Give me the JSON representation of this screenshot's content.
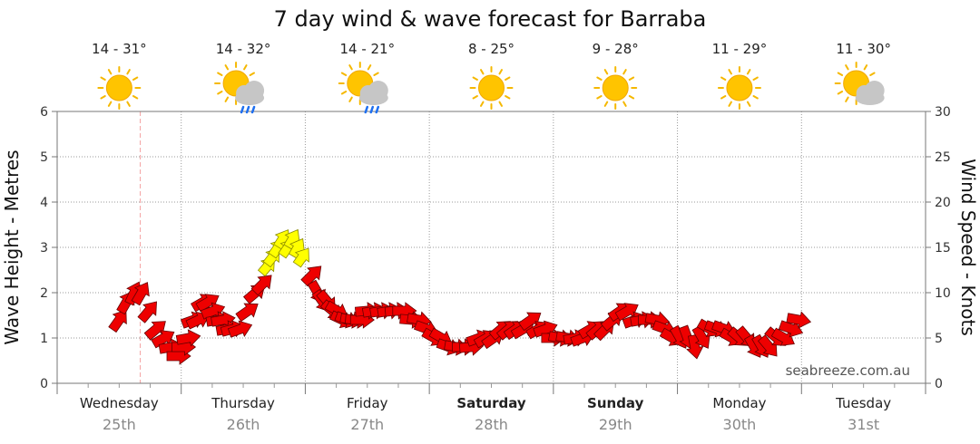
{
  "title": "7 day wind & wave forecast for Barraba",
  "credit": "seabreeze.com.au",
  "colors": {
    "arrow_normal": "#ee0000",
    "arrow_strong": "#ffff00",
    "arrow_outline": "#660000",
    "now_line": "#f4a0a0",
    "grid": "#9a9a9a"
  },
  "days": [
    {
      "name": "Wednesday",
      "date": "25th",
      "temp": "14 - 31°",
      "icon": "sun-icon",
      "bold": false
    },
    {
      "name": "Thursday",
      "date": "26th",
      "temp": "14 - 32°",
      "icon": "sun-cloud-rain-icon",
      "bold": false
    },
    {
      "name": "Friday",
      "date": "27th",
      "temp": "14 - 21°",
      "icon": "sun-cloud-rain-icon",
      "bold": false
    },
    {
      "name": "Saturday",
      "date": "28th",
      "temp": "8 - 25°",
      "icon": "sun-icon",
      "bold": true
    },
    {
      "name": "Sunday",
      "date": "29th",
      "temp": "9 - 28°",
      "icon": "sun-icon",
      "bold": true
    },
    {
      "name": "Monday",
      "date": "30th",
      "temp": "11 - 29°",
      "icon": "sun-icon",
      "bold": false
    },
    {
      "name": "Tuesday",
      "date": "31st",
      "temp": "11 - 30°",
      "icon": "sun-cloud-icon",
      "bold": false
    }
  ],
  "chart_data": {
    "type": "scatter",
    "title": "7 day wind & wave forecast for Barraba",
    "x_unit": "day",
    "x_range": [
      0,
      7
    ],
    "y_left": {
      "label": "Wave Height - Metres",
      "ticks": [
        0,
        1,
        2,
        3,
        4,
        5,
        6
      ],
      "ylim": [
        0,
        6
      ]
    },
    "y_right": {
      "label": "Wind Speed - Knots",
      "ticks": [
        0,
        5,
        10,
        15,
        20,
        25,
        30
      ],
      "ylim": [
        0,
        30
      ]
    },
    "grid": true,
    "now_marker_day": 0.67,
    "series": [
      {
        "columns": [
          "day",
          "wind_knots",
          "direction_deg"
        ],
        "points": [
          [
            0.5,
            7,
            35
          ],
          [
            0.56,
            9,
            30
          ],
          [
            0.62,
            10,
            25
          ],
          [
            0.68,
            10,
            30
          ],
          [
            0.74,
            8,
            40
          ],
          [
            0.8,
            6,
            50
          ],
          [
            0.86,
            5,
            60
          ],
          [
            0.92,
            4,
            80
          ],
          [
            0.98,
            3,
            90
          ],
          [
            1.02,
            4,
            90
          ],
          [
            1.06,
            5,
            80
          ],
          [
            1.1,
            7,
            70
          ],
          [
            1.14,
            7,
            65
          ],
          [
            1.18,
            9,
            60
          ],
          [
            1.22,
            9,
            60
          ],
          [
            1.26,
            8,
            70
          ],
          [
            1.3,
            7,
            80
          ],
          [
            1.34,
            7,
            80
          ],
          [
            1.38,
            6,
            80
          ],
          [
            1.42,
            6,
            75
          ],
          [
            1.48,
            6,
            70
          ],
          [
            1.54,
            8,
            55
          ],
          [
            1.6,
            10,
            50
          ],
          [
            1.66,
            11,
            45
          ],
          [
            1.7,
            13,
            40
          ],
          [
            1.74,
            14,
            38
          ],
          [
            1.78,
            15,
            35
          ],
          [
            1.82,
            16,
            32
          ],
          [
            1.86,
            15,
            35
          ],
          [
            1.9,
            16,
            30
          ],
          [
            1.94,
            15,
            30
          ],
          [
            1.98,
            14,
            35
          ],
          [
            2.06,
            12,
            45
          ],
          [
            2.1,
            10,
            150
          ],
          [
            2.14,
            9,
            145
          ],
          [
            2.18,
            9,
            140
          ],
          [
            2.22,
            8,
            130
          ],
          [
            2.26,
            8,
            120
          ],
          [
            2.3,
            7,
            115
          ],
          [
            2.34,
            7,
            110
          ],
          [
            2.38,
            7,
            100
          ],
          [
            2.42,
            7,
            95
          ],
          [
            2.46,
            7,
            90
          ],
          [
            2.5,
            8,
            85
          ],
          [
            2.56,
            8,
            80
          ],
          [
            2.62,
            8,
            80
          ],
          [
            2.68,
            8,
            80
          ],
          [
            2.74,
            8,
            85
          ],
          [
            2.8,
            8,
            90
          ],
          [
            2.86,
            7,
            95
          ],
          [
            2.92,
            7,
            100
          ],
          [
            2.98,
            6,
            110
          ],
          [
            3.04,
            5,
            120
          ],
          [
            3.1,
            5,
            120
          ],
          [
            3.16,
            4,
            110
          ],
          [
            3.22,
            4,
            100
          ],
          [
            3.28,
            4,
            90
          ],
          [
            3.34,
            4,
            85
          ],
          [
            3.4,
            5,
            70
          ],
          [
            3.46,
            5,
            60
          ],
          [
            3.52,
            5,
            55
          ],
          [
            3.58,
            6,
            50
          ],
          [
            3.64,
            6,
            50
          ],
          [
            3.7,
            6,
            55
          ],
          [
            3.76,
            6,
            60
          ],
          [
            3.82,
            7,
            55
          ],
          [
            3.88,
            6,
            60
          ],
          [
            3.94,
            6,
            70
          ],
          [
            4.0,
            5,
            90
          ],
          [
            4.06,
            5,
            100
          ],
          [
            4.12,
            5,
            100
          ],
          [
            4.18,
            5,
            80
          ],
          [
            4.24,
            5,
            70
          ],
          [
            4.3,
            6,
            60
          ],
          [
            4.36,
            6,
            50
          ],
          [
            4.42,
            6,
            45
          ],
          [
            4.48,
            7,
            50
          ],
          [
            4.54,
            8,
            55
          ],
          [
            4.6,
            8,
            60
          ],
          [
            4.66,
            7,
            70
          ],
          [
            4.72,
            7,
            80
          ],
          [
            4.78,
            7,
            90
          ],
          [
            4.84,
            7,
            100
          ],
          [
            4.9,
            6,
            110
          ],
          [
            4.96,
            5,
            120
          ],
          [
            5.02,
            5,
            150
          ],
          [
            5.08,
            5,
            160
          ],
          [
            5.14,
            4,
            170
          ],
          [
            5.2,
            5,
            150
          ],
          [
            5.26,
            6,
            120
          ],
          [
            5.32,
            6,
            110
          ],
          [
            5.38,
            6,
            110
          ],
          [
            5.44,
            5,
            120
          ],
          [
            5.5,
            5,
            130
          ],
          [
            5.56,
            5,
            140
          ],
          [
            5.62,
            4,
            150
          ],
          [
            5.68,
            4,
            150
          ],
          [
            5.74,
            4,
            140
          ],
          [
            5.8,
            5,
            130
          ],
          [
            5.86,
            5,
            120
          ],
          [
            5.92,
            6,
            110
          ],
          [
            5.98,
            7,
            100
          ]
        ]
      }
    ]
  }
}
